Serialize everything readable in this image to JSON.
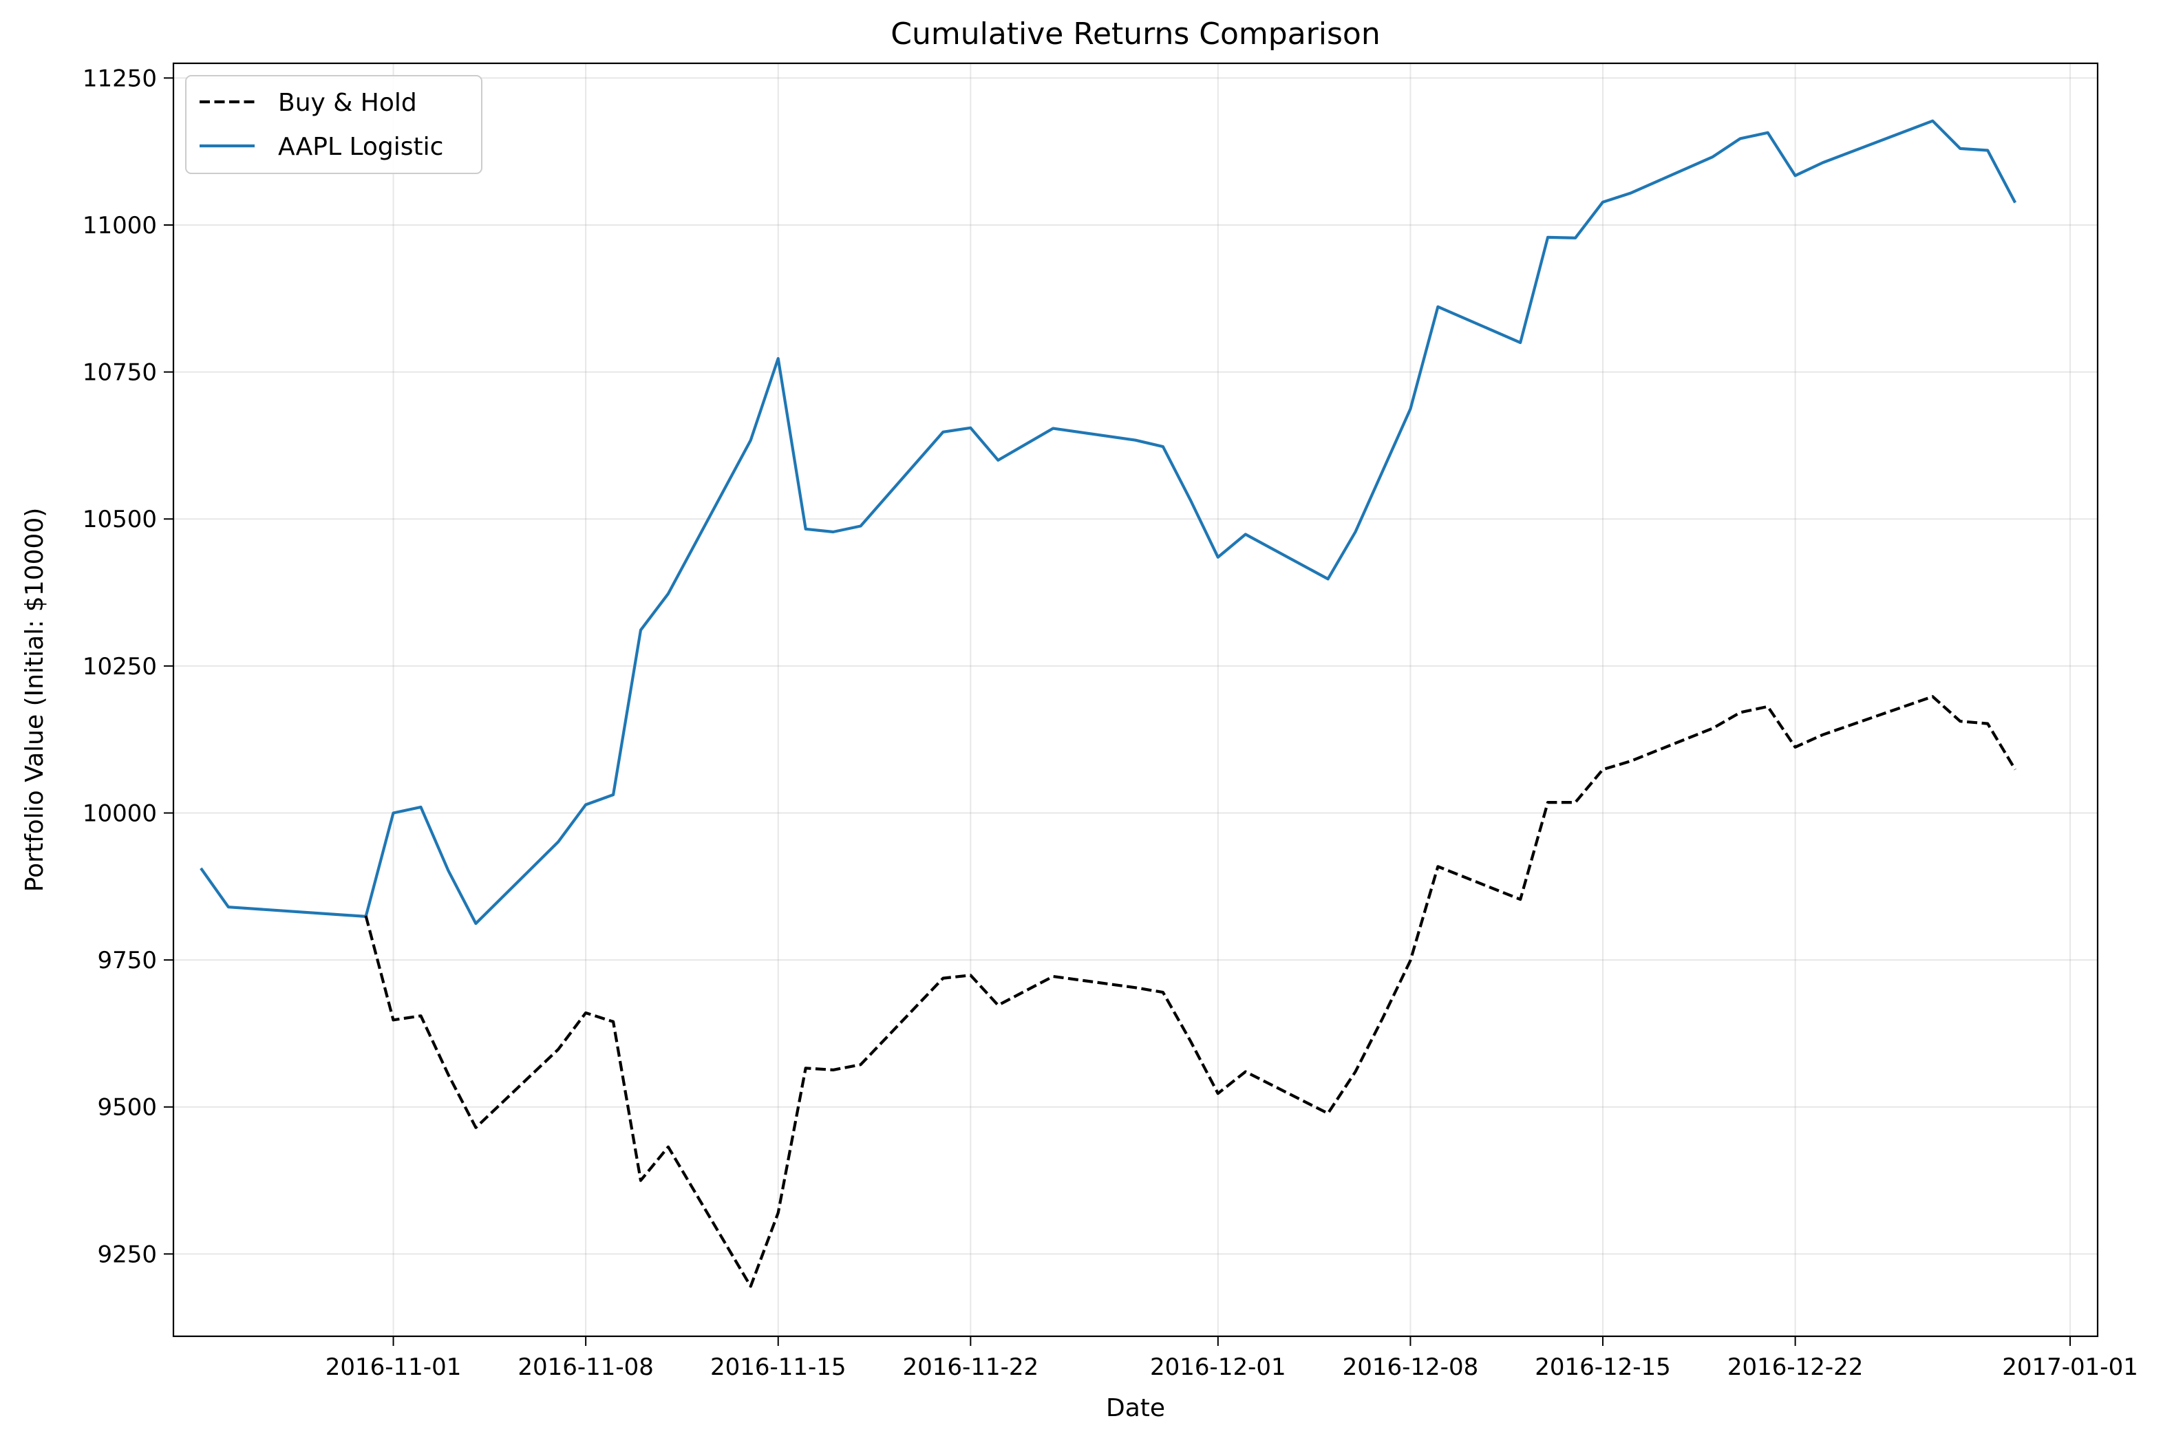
{
  "chart_data": {
    "type": "line",
    "title": "Cumulative Returns Comparison",
    "xlabel": "Date",
    "ylabel": "Portfolio Value (Initial: $10000)",
    "xlim": [
      "2016-10-24",
      "2017-01-02"
    ],
    "ylim": [
      9110,
      11275
    ],
    "grid": true,
    "legend_position": "top-left",
    "x_ticks": [
      "2016-11-01",
      "2016-11-08",
      "2016-11-15",
      "2016-11-22",
      "2016-12-01",
      "2016-12-08",
      "2016-12-15",
      "2016-12-22",
      "2017-01-01"
    ],
    "y_ticks": [
      9250,
      9500,
      9750,
      10000,
      10250,
      10500,
      10750,
      11000,
      11250
    ],
    "series": [
      {
        "name": "Buy & Hold",
        "color": "#000000",
        "style": "dashed",
        "points": [
          [
            "2016-10-31",
            9825
          ],
          [
            "2016-11-01",
            9648
          ],
          [
            "2016-11-02",
            9655
          ],
          [
            "2016-11-03",
            9555
          ],
          [
            "2016-11-04",
            9465
          ],
          [
            "2016-11-07",
            9598
          ],
          [
            "2016-11-08",
            9660
          ],
          [
            "2016-11-09",
            9645
          ],
          [
            "2016-11-10",
            9375
          ],
          [
            "2016-11-11",
            9432
          ],
          [
            "2016-11-14",
            9195
          ],
          [
            "2016-11-15",
            9320
          ],
          [
            "2016-11-16",
            9566
          ],
          [
            "2016-11-17",
            9563
          ],
          [
            "2016-11-18",
            9572
          ],
          [
            "2016-11-21",
            9719
          ],
          [
            "2016-11-22",
            9724
          ],
          [
            "2016-11-23",
            9673
          ],
          [
            "2016-11-25",
            9722
          ],
          [
            "2016-11-28",
            9703
          ],
          [
            "2016-11-29",
            9695
          ],
          [
            "2016-11-30",
            9612
          ],
          [
            "2016-12-01",
            9523
          ],
          [
            "2016-12-02",
            9560
          ],
          [
            "2016-12-05",
            9489
          ],
          [
            "2016-12-06",
            9560
          ],
          [
            "2016-12-07",
            9652
          ],
          [
            "2016-12-08",
            9749
          ],
          [
            "2016-12-09",
            9909
          ],
          [
            "2016-12-12",
            9853
          ],
          [
            "2016-12-13",
            10018
          ],
          [
            "2016-12-14",
            10018
          ],
          [
            "2016-12-15",
            10074
          ],
          [
            "2016-12-16",
            10088
          ],
          [
            "2016-12-19",
            10144
          ],
          [
            "2016-12-20",
            10171
          ],
          [
            "2016-12-21",
            10181
          ],
          [
            "2016-12-22",
            10112
          ],
          [
            "2016-12-23",
            10133
          ],
          [
            "2016-12-27",
            10198
          ],
          [
            "2016-12-28",
            10156
          ],
          [
            "2016-12-29",
            10152
          ],
          [
            "2016-12-30",
            10074
          ]
        ]
      },
      {
        "name": "AAPL Logistic",
        "color": "#1f77b4",
        "style": "solid",
        "points": [
          [
            "2016-10-25",
            9906
          ],
          [
            "2016-10-26",
            9840
          ],
          [
            "2016-10-31",
            9824
          ],
          [
            "2016-11-01",
            10000
          ],
          [
            "2016-11-02",
            10010
          ],
          [
            "2016-11-03",
            9902
          ],
          [
            "2016-11-04",
            9812
          ],
          [
            "2016-11-07",
            9951
          ],
          [
            "2016-11-08",
            10014
          ],
          [
            "2016-11-09",
            10031
          ],
          [
            "2016-11-10",
            10311
          ],
          [
            "2016-11-11",
            10373
          ],
          [
            "2016-11-14",
            10634
          ],
          [
            "2016-11-15",
            10773
          ],
          [
            "2016-11-16",
            10483
          ],
          [
            "2016-11-17",
            10478
          ],
          [
            "2016-11-18",
            10488
          ],
          [
            "2016-11-21",
            10648
          ],
          [
            "2016-11-22",
            10655
          ],
          [
            "2016-11-23",
            10600
          ],
          [
            "2016-11-25",
            10654
          ],
          [
            "2016-11-28",
            10634
          ],
          [
            "2016-11-29",
            10623
          ],
          [
            "2016-11-30",
            10532
          ],
          [
            "2016-12-01",
            10435
          ],
          [
            "2016-12-02",
            10474
          ],
          [
            "2016-12-05",
            10398
          ],
          [
            "2016-12-06",
            10478
          ],
          [
            "2016-12-08",
            10687
          ],
          [
            "2016-12-09",
            10861
          ],
          [
            "2016-12-12",
            10800
          ],
          [
            "2016-12-13",
            10979
          ],
          [
            "2016-12-14",
            10978
          ],
          [
            "2016-12-15",
            11039
          ],
          [
            "2016-12-16",
            11054
          ],
          [
            "2016-12-19",
            11116
          ],
          [
            "2016-12-20",
            11147
          ],
          [
            "2016-12-21",
            11157
          ],
          [
            "2016-12-22",
            11084
          ],
          [
            "2016-12-23",
            11106
          ],
          [
            "2016-12-27",
            11177
          ],
          [
            "2016-12-28",
            11130
          ],
          [
            "2016-12-29",
            11127
          ],
          [
            "2016-12-30",
            11038
          ]
        ]
      }
    ]
  }
}
